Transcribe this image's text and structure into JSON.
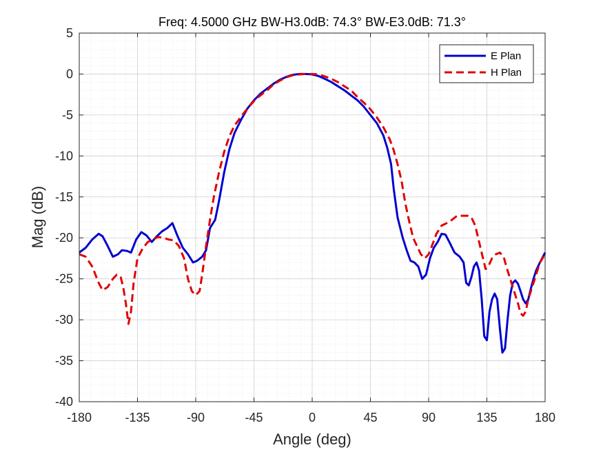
{
  "chart_data": {
    "type": "line",
    "title": "Freq: 4.5000 GHz    BW-H3.0dB: 74.3°    BW-E3.0dB: 71.3°",
    "xlabel": "Angle (deg)",
    "ylabel": "Mag (dB)",
    "xlim": [
      -180,
      180
    ],
    "ylim": [
      -40,
      5
    ],
    "xticks": [
      -180,
      -135,
      -90,
      -45,
      0,
      45,
      90,
      135,
      180
    ],
    "yticks": [
      5,
      0,
      -5,
      -10,
      -15,
      -20,
      -25,
      -30,
      -35,
      -40
    ],
    "xtick_labels": [
      "-180",
      "-135",
      "-90",
      "-45",
      "0",
      "45",
      "90",
      "135",
      "180"
    ],
    "ytick_labels": [
      "5",
      "0",
      "-5",
      "-10",
      "-15",
      "-20",
      "-25",
      "-30",
      "-35",
      "-40"
    ],
    "grid": true,
    "minor_grid": true,
    "legend": {
      "position": "top-right"
    },
    "series": [
      {
        "name": "E Plan",
        "color": "#0000d0",
        "dash": "solid",
        "points": [
          [
            -180,
            -21.8
          ],
          [
            -175,
            -21.2
          ],
          [
            -170,
            -20.2
          ],
          [
            -165,
            -19.5
          ],
          [
            -162,
            -19.8
          ],
          [
            -158,
            -21.0
          ],
          [
            -154,
            -22.3
          ],
          [
            -150,
            -22.0
          ],
          [
            -147,
            -21.5
          ],
          [
            -143,
            -21.6
          ],
          [
            -140,
            -21.8
          ],
          [
            -136,
            -20.2
          ],
          [
            -132,
            -19.3
          ],
          [
            -128,
            -19.7
          ],
          [
            -124,
            -20.5
          ],
          [
            -120,
            -19.8
          ],
          [
            -116,
            -19.2
          ],
          [
            -112,
            -18.8
          ],
          [
            -108,
            -18.2
          ],
          [
            -104,
            -19.8
          ],
          [
            -100,
            -21.2
          ],
          [
            -96,
            -22.0
          ],
          [
            -92,
            -23.0
          ],
          [
            -89,
            -22.8
          ],
          [
            -85,
            -22.3
          ],
          [
            -82,
            -21.5
          ],
          [
            -79,
            -18.8
          ],
          [
            -75,
            -17.8
          ],
          [
            -72,
            -15.5
          ],
          [
            -68,
            -12.0
          ],
          [
            -64,
            -9.2
          ],
          [
            -60,
            -7.2
          ],
          [
            -55,
            -5.6
          ],
          [
            -50,
            -4.2
          ],
          [
            -45,
            -3.2
          ],
          [
            -40,
            -2.4
          ],
          [
            -35,
            -1.8
          ],
          [
            -30,
            -1.2
          ],
          [
            -25,
            -0.7
          ],
          [
            -20,
            -0.35
          ],
          [
            -15,
            -0.1
          ],
          [
            -10,
            0
          ],
          [
            -5,
            0
          ],
          [
            0,
            -0.05
          ],
          [
            5,
            -0.25
          ],
          [
            10,
            -0.6
          ],
          [
            15,
            -1.0
          ],
          [
            20,
            -1.5
          ],
          [
            25,
            -2.0
          ],
          [
            30,
            -2.6
          ],
          [
            35,
            -3.2
          ],
          [
            40,
            -4.0
          ],
          [
            45,
            -5.0
          ],
          [
            50,
            -6.0
          ],
          [
            55,
            -7.5
          ],
          [
            58,
            -9.0
          ],
          [
            61,
            -11.0
          ],
          [
            63,
            -14.0
          ],
          [
            66,
            -17.5
          ],
          [
            70,
            -20.0
          ],
          [
            73,
            -21.5
          ],
          [
            76,
            -22.8
          ],
          [
            79,
            -23.0
          ],
          [
            82,
            -23.5
          ],
          [
            85,
            -25.0
          ],
          [
            88,
            -24.5
          ],
          [
            91,
            -22.5
          ],
          [
            94,
            -21.2
          ],
          [
            97,
            -20.5
          ],
          [
            100,
            -19.5
          ],
          [
            103,
            -19.6
          ],
          [
            106,
            -20.5
          ],
          [
            110,
            -21.8
          ],
          [
            114,
            -22.3
          ],
          [
            117,
            -23.0
          ],
          [
            119,
            -25.5
          ],
          [
            121,
            -25.8
          ],
          [
            123,
            -24.8
          ],
          [
            125,
            -23.5
          ],
          [
            127,
            -23.0
          ],
          [
            129,
            -24.0
          ],
          [
            131,
            -27.5
          ],
          [
            133,
            -32.0
          ],
          [
            135,
            -32.5
          ],
          [
            137,
            -29.0
          ],
          [
            139,
            -27.5
          ],
          [
            141,
            -26.8
          ],
          [
            143,
            -27.5
          ],
          [
            145,
            -31.0
          ],
          [
            147,
            -34.0
          ],
          [
            149,
            -33.5
          ],
          [
            151,
            -30.0
          ],
          [
            153,
            -27.0
          ],
          [
            155,
            -25.5
          ],
          [
            157,
            -25.2
          ],
          [
            159,
            -25.6
          ],
          [
            161,
            -26.5
          ],
          [
            163,
            -27.5
          ],
          [
            165,
            -28.0
          ],
          [
            167,
            -27.5
          ],
          [
            169,
            -26.2
          ],
          [
            171,
            -25.0
          ],
          [
            173,
            -24.0
          ],
          [
            176,
            -23.0
          ],
          [
            180,
            -21.8
          ]
        ]
      },
      {
        "name": "H Plan",
        "color": "#e00000",
        "dash": "dashed",
        "points": [
          [
            -180,
            -22.0
          ],
          [
            -175,
            -22.3
          ],
          [
            -170,
            -23.5
          ],
          [
            -165,
            -25.5
          ],
          [
            -162,
            -26.4
          ],
          [
            -158,
            -26.0
          ],
          [
            -154,
            -25.0
          ],
          [
            -151,
            -24.5
          ],
          [
            -148,
            -24.8
          ],
          [
            -146,
            -26.0
          ],
          [
            -144,
            -28.0
          ],
          [
            -142,
            -30.5
          ],
          [
            -140,
            -29.0
          ],
          [
            -138,
            -25.5
          ],
          [
            -135,
            -22.5
          ],
          [
            -131,
            -21.3
          ],
          [
            -127,
            -20.5
          ],
          [
            -123,
            -20.2
          ],
          [
            -119,
            -19.9
          ],
          [
            -115,
            -20.0
          ],
          [
            -111,
            -20.2
          ],
          [
            -107,
            -20.3
          ],
          [
            -103,
            -21.0
          ],
          [
            -99,
            -22.5
          ],
          [
            -96,
            -25.0
          ],
          [
            -93,
            -26.5
          ],
          [
            -90,
            -27.0
          ],
          [
            -87,
            -26.5
          ],
          [
            -85,
            -24.5
          ],
          [
            -82,
            -21.0
          ],
          [
            -79,
            -17.8
          ],
          [
            -76,
            -15.0
          ],
          [
            -72,
            -12.0
          ],
          [
            -68,
            -9.5
          ],
          [
            -64,
            -7.6
          ],
          [
            -60,
            -6.3
          ],
          [
            -55,
            -5.2
          ],
          [
            -50,
            -4.2
          ],
          [
            -45,
            -3.3
          ],
          [
            -40,
            -2.6
          ],
          [
            -35,
            -2.0
          ],
          [
            -30,
            -1.3
          ],
          [
            -25,
            -0.8
          ],
          [
            -20,
            -0.4
          ],
          [
            -15,
            -0.15
          ],
          [
            -10,
            -0.05
          ],
          [
            -5,
            0
          ],
          [
            0,
            0
          ],
          [
            5,
            -0.05
          ],
          [
            10,
            -0.3
          ],
          [
            15,
            -0.6
          ],
          [
            20,
            -1.0
          ],
          [
            25,
            -1.5
          ],
          [
            30,
            -2.0
          ],
          [
            35,
            -2.8
          ],
          [
            40,
            -3.5
          ],
          [
            45,
            -4.3
          ],
          [
            50,
            -5.3
          ],
          [
            55,
            -6.5
          ],
          [
            60,
            -8.0
          ],
          [
            63,
            -9.3
          ],
          [
            66,
            -11.0
          ],
          [
            69,
            -13.0
          ],
          [
            72,
            -15.8
          ],
          [
            75,
            -18.0
          ],
          [
            78,
            -20.0
          ],
          [
            81,
            -21.0
          ],
          [
            84,
            -22.0
          ],
          [
            87,
            -22.5
          ],
          [
            90,
            -22.0
          ],
          [
            93,
            -20.8
          ],
          [
            96,
            -19.5
          ],
          [
            100,
            -18.5
          ],
          [
            104,
            -18.2
          ],
          [
            108,
            -17.8
          ],
          [
            112,
            -17.3
          ],
          [
            116,
            -17.3
          ],
          [
            120,
            -17.3
          ],
          [
            123,
            -17.5
          ],
          [
            126,
            -18.5
          ],
          [
            129,
            -20.5
          ],
          [
            132,
            -22.5
          ],
          [
            134,
            -23.8
          ],
          [
            136,
            -23.5
          ],
          [
            139,
            -22.5
          ],
          [
            142,
            -22.0
          ],
          [
            145,
            -21.8
          ],
          [
            148,
            -22.3
          ],
          [
            150,
            -23.5
          ],
          [
            153,
            -25.0
          ],
          [
            156,
            -26.5
          ],
          [
            159,
            -28.0
          ],
          [
            161,
            -29.2
          ],
          [
            163,
            -29.5
          ],
          [
            165,
            -29.0
          ],
          [
            167,
            -27.5
          ],
          [
            170,
            -26.0
          ],
          [
            173,
            -24.5
          ],
          [
            176,
            -23.0
          ],
          [
            180,
            -22.0
          ]
        ]
      }
    ]
  }
}
